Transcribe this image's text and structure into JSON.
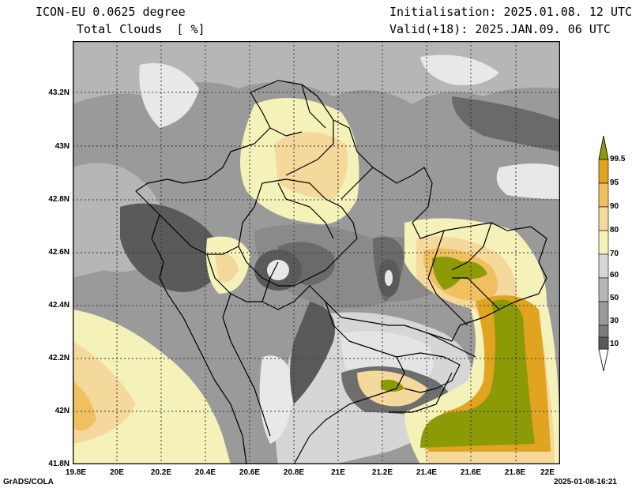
{
  "header": {
    "model": "ICON-EU 0.0625 degree",
    "variable": "Total Clouds  [ %]",
    "init": "Initialisation: 2025.01.08. 12 UTC",
    "valid": "Valid(+18): 2025.JAN.09. 06 UTC"
  },
  "axes": {
    "lat_labels": [
      "43.2N",
      "43N",
      "42.8N",
      "42.6N",
      "42.4N",
      "42.2N",
      "42N",
      "41.8N"
    ],
    "lon_labels": [
      "19.8E",
      "20E",
      "20.2E",
      "20.4E",
      "20.6E",
      "20.8E",
      "21E",
      "21.2E",
      "21.4E",
      "21.6E",
      "21.8E",
      "22E"
    ],
    "lat_range": [
      41.8,
      43.4
    ],
    "lon_range": [
      19.8,
      22.0
    ],
    "grid": "dotted"
  },
  "colorbar": {
    "levels": [
      "10",
      "30",
      "50",
      "60",
      "70",
      "80",
      "90",
      "95",
      "99.5"
    ],
    "colors": [
      "#ffffff",
      "#5a5a5a",
      "#7c7c7c",
      "#9a9a9a",
      "#b6b6b6",
      "#d6d6d6",
      "#f4f2b8",
      "#f4d89c",
      "#f0c060",
      "#e0a420",
      "#8c9a08"
    ]
  },
  "footer": {
    "left": "GrADS/COLA",
    "right": "2025-01-08-16:21"
  }
}
